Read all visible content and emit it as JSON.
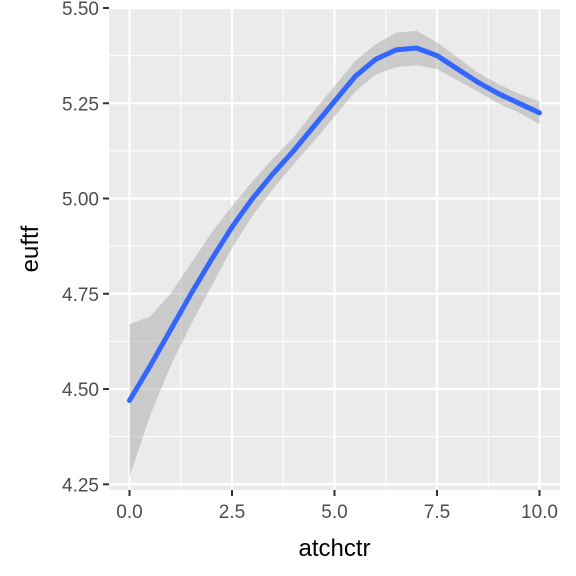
{
  "chart_data": {
    "type": "line",
    "title": "",
    "xlabel": "atchctr",
    "ylabel": "euftf",
    "xlim": [
      -0.5,
      10.5
    ],
    "ylim": [
      4.235,
      5.5
    ],
    "x_ticks": [
      0,
      2.5,
      5,
      7.5,
      10
    ],
    "x_tick_labels": [
      "0.0",
      "2.5",
      "5.0",
      "7.5",
      "10.0"
    ],
    "y_ticks": [
      4.25,
      4.5,
      4.75,
      5,
      5.25,
      5.5
    ],
    "y_tick_labels": [
      "4.25",
      "4.50",
      "4.75",
      "5.00",
      "5.25",
      "5.50"
    ],
    "grid": true,
    "legend": "none",
    "colors": {
      "panel_background": "#ebebeb",
      "grid": "#ffffff",
      "line": "#3366ff",
      "ribbon": "#999999"
    },
    "series": [
      {
        "x": [
          0,
          0.5,
          1,
          1.5,
          2,
          2.5,
          3,
          3.5,
          4,
          4.5,
          5,
          5.5,
          6,
          6.5,
          7,
          7.5,
          8,
          8.5,
          9,
          9.5,
          10
        ],
        "y": [
          4.47,
          4.56,
          4.655,
          4.75,
          4.84,
          4.925,
          5.0,
          5.065,
          5.125,
          5.19,
          5.255,
          5.32,
          5.365,
          5.39,
          5.395,
          5.375,
          5.34,
          5.305,
          5.275,
          5.25,
          5.225
        ],
        "ymin": [
          4.27,
          4.43,
          4.56,
          4.67,
          4.77,
          4.87,
          4.955,
          5.025,
          5.09,
          5.15,
          5.215,
          5.28,
          5.325,
          5.345,
          5.35,
          5.34,
          5.31,
          5.28,
          5.25,
          5.225,
          5.195
        ],
        "ymax": [
          4.67,
          4.69,
          4.75,
          4.83,
          4.91,
          4.98,
          5.045,
          5.105,
          5.16,
          5.23,
          5.295,
          5.36,
          5.405,
          5.435,
          5.44,
          5.41,
          5.37,
          5.33,
          5.3,
          5.275,
          5.255
        ]
      }
    ]
  }
}
